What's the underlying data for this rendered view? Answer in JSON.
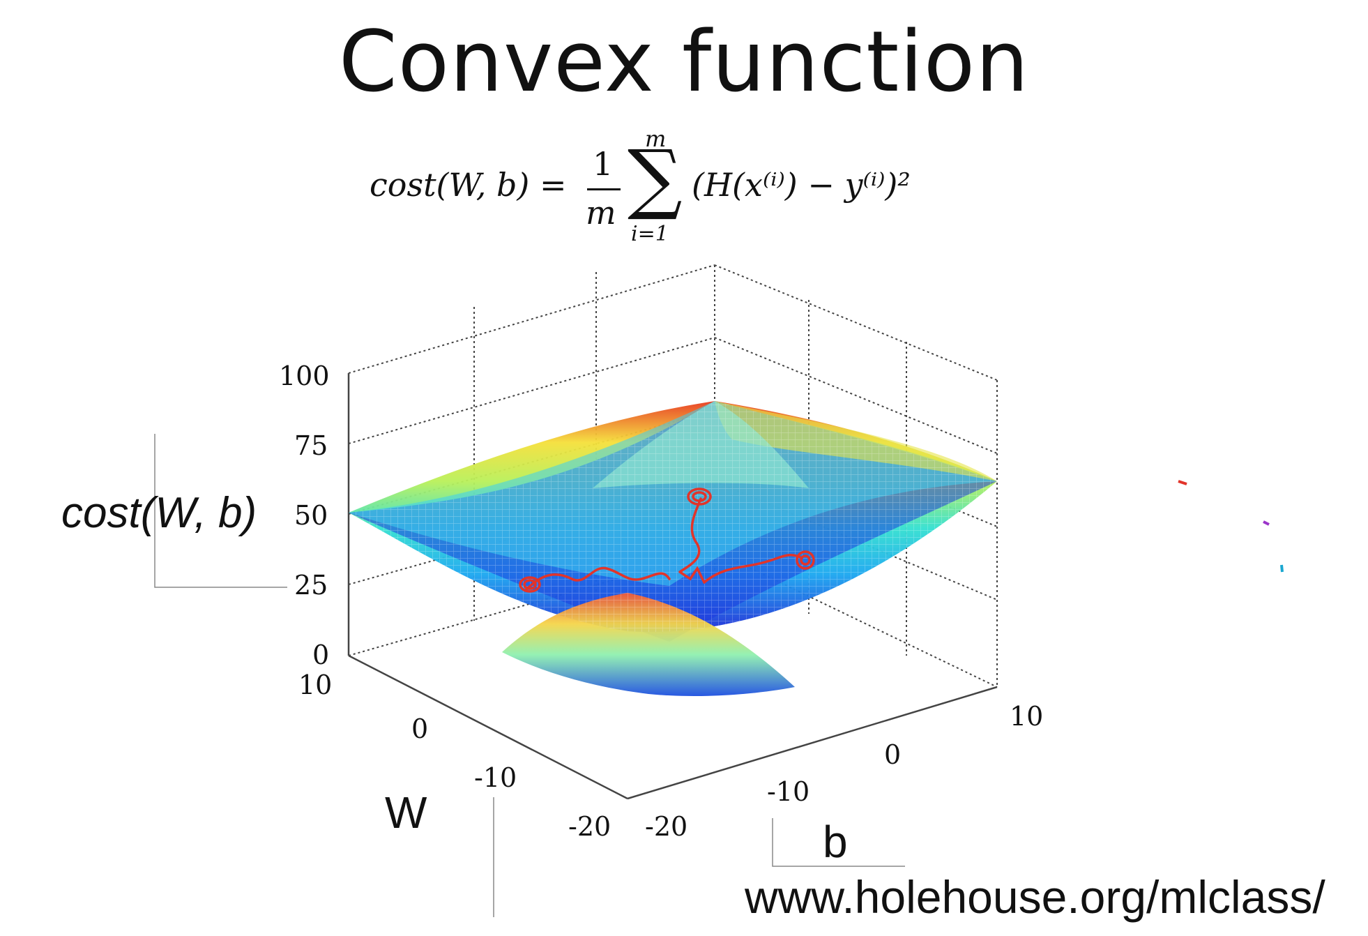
{
  "slide": {
    "title": "Convex function",
    "formula": {
      "lhs": "cost(W, b) =",
      "frac_num": "1",
      "frac_den": "m",
      "sum_top": "m",
      "sum_bottom": "i=1",
      "body": "(H(x⁽ⁱ⁾) − y⁽ⁱ⁾)²"
    },
    "url": "www.holehouse.org/mlclass/"
  },
  "chart_data": {
    "type": "surface",
    "title": "",
    "zlabel": "cost(W, b)",
    "wlabel": "W",
    "blabel": "b",
    "z_ticks": [
      "100",
      "75",
      "50",
      "25",
      "0"
    ],
    "w_ticks": [
      "10",
      "0",
      "-10",
      "-20"
    ],
    "b_ticks": [
      "-20",
      "-10",
      "0",
      "10"
    ],
    "zlim": [
      0,
      100
    ],
    "wlim": [
      -20,
      10
    ],
    "blim": [
      -20,
      10
    ],
    "grid": true,
    "colormap": "jet",
    "annotations": "hand-drawn red gradient descent paths"
  }
}
